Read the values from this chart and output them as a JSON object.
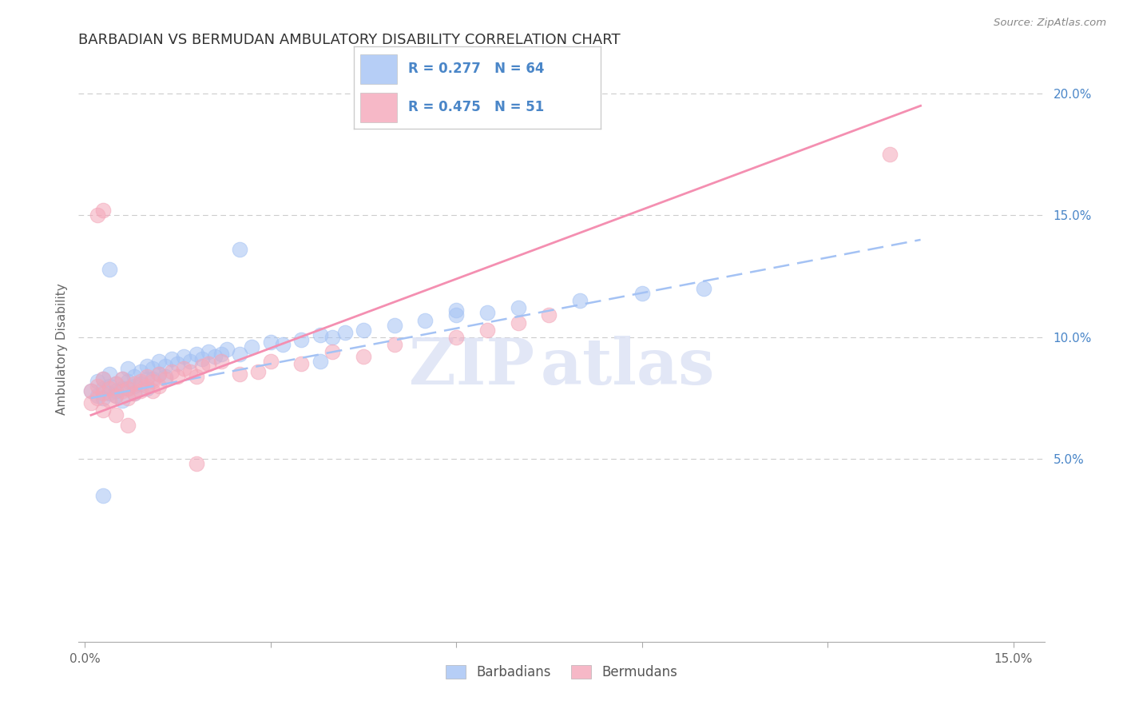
{
  "title": "BARBADIAN VS BERMUDAN AMBULATORY DISABILITY CORRELATION CHART",
  "source": "Source: ZipAtlas.com",
  "ylabel": "Ambulatory Disability",
  "xlim": [
    -0.001,
    0.155
  ],
  "ylim": [
    -0.025,
    0.215
  ],
  "xticks": [
    0.0,
    0.03,
    0.06,
    0.09,
    0.12,
    0.15
  ],
  "xticklabels": [
    "0.0%",
    "",
    "",
    "",
    "",
    "15.0%"
  ],
  "yticks_right": [
    0.05,
    0.1,
    0.15,
    0.2
  ],
  "yticklabels_right": [
    "5.0%",
    "10.0%",
    "15.0%",
    "20.0%"
  ],
  "legend_r1": "R = 0.277",
  "legend_n1": "N = 64",
  "legend_r2": "R = 0.475",
  "legend_n2": "N = 51",
  "blue_color": "#a4c2f4",
  "pink_color": "#f4a7b9",
  "blue_line_color": "#a4c2f4",
  "pink_line_color": "#f48fb1",
  "text_color": "#4a86c8",
  "background_color": "#ffffff",
  "grid_color": "#cccccc",
  "blue_scatter_x": [
    0.001,
    0.002,
    0.002,
    0.003,
    0.003,
    0.003,
    0.004,
    0.004,
    0.004,
    0.005,
    0.005,
    0.005,
    0.006,
    0.006,
    0.006,
    0.007,
    0.007,
    0.007,
    0.008,
    0.008,
    0.008,
    0.009,
    0.009,
    0.01,
    0.01,
    0.01,
    0.011,
    0.011,
    0.012,
    0.012,
    0.013,
    0.013,
    0.014,
    0.015,
    0.016,
    0.017,
    0.018,
    0.019,
    0.02,
    0.021,
    0.022,
    0.023,
    0.025,
    0.027,
    0.03,
    0.032,
    0.035,
    0.038,
    0.04,
    0.042,
    0.045,
    0.05,
    0.055,
    0.06,
    0.065,
    0.07,
    0.06,
    0.08,
    0.09,
    0.1,
    0.003,
    0.004,
    0.025,
    0.038
  ],
  "blue_scatter_y": [
    0.078,
    0.082,
    0.076,
    0.079,
    0.075,
    0.083,
    0.08,
    0.077,
    0.085,
    0.081,
    0.078,
    0.076,
    0.083,
    0.079,
    0.074,
    0.082,
    0.087,
    0.079,
    0.084,
    0.08,
    0.077,
    0.086,
    0.081,
    0.088,
    0.083,
    0.079,
    0.087,
    0.083,
    0.09,
    0.085,
    0.088,
    0.084,
    0.091,
    0.089,
    0.092,
    0.09,
    0.093,
    0.091,
    0.094,
    0.092,
    0.093,
    0.095,
    0.093,
    0.096,
    0.098,
    0.097,
    0.099,
    0.101,
    0.1,
    0.102,
    0.103,
    0.105,
    0.107,
    0.109,
    0.11,
    0.112,
    0.111,
    0.115,
    0.118,
    0.12,
    0.035,
    0.128,
    0.136,
    0.09
  ],
  "pink_scatter_x": [
    0.001,
    0.001,
    0.002,
    0.002,
    0.003,
    0.003,
    0.003,
    0.004,
    0.004,
    0.005,
    0.005,
    0.005,
    0.006,
    0.006,
    0.007,
    0.007,
    0.007,
    0.008,
    0.008,
    0.009,
    0.009,
    0.01,
    0.01,
    0.011,
    0.011,
    0.012,
    0.012,
    0.013,
    0.014,
    0.015,
    0.016,
    0.017,
    0.018,
    0.019,
    0.02,
    0.022,
    0.025,
    0.028,
    0.03,
    0.035,
    0.04,
    0.045,
    0.05,
    0.06,
    0.065,
    0.07,
    0.075,
    0.13,
    0.002,
    0.003,
    0.018
  ],
  "pink_scatter_y": [
    0.078,
    0.073,
    0.075,
    0.08,
    0.077,
    0.07,
    0.083,
    0.079,
    0.074,
    0.081,
    0.076,
    0.068,
    0.083,
    0.078,
    0.079,
    0.075,
    0.064,
    0.081,
    0.077,
    0.082,
    0.078,
    0.084,
    0.08,
    0.082,
    0.078,
    0.085,
    0.08,
    0.083,
    0.086,
    0.084,
    0.087,
    0.086,
    0.084,
    0.088,
    0.089,
    0.09,
    0.085,
    0.086,
    0.09,
    0.089,
    0.094,
    0.092,
    0.097,
    0.1,
    0.103,
    0.106,
    0.109,
    0.175,
    0.15,
    0.152,
    0.048
  ],
  "blue_line_x": [
    0.001,
    0.135
  ],
  "blue_line_y": [
    0.075,
    0.14
  ],
  "pink_line_x": [
    0.001,
    0.135
  ],
  "pink_line_y": [
    0.068,
    0.195
  ]
}
